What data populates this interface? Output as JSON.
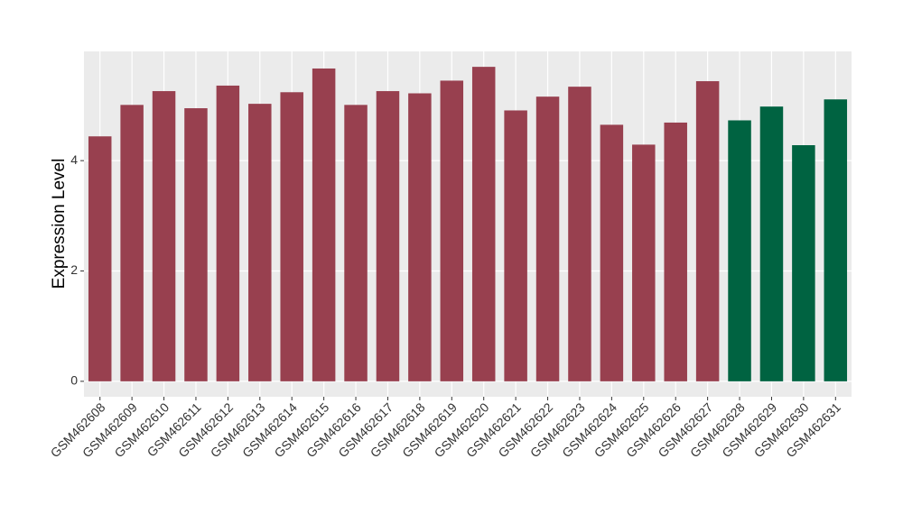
{
  "chart_data": {
    "type": "bar",
    "y_label": "Expression Level",
    "categories": [
      "GSM462608",
      "GSM462609",
      "GSM462610",
      "GSM462611",
      "GSM462612",
      "GSM462613",
      "GSM462614",
      "GSM462615",
      "GSM462616",
      "GSM462617",
      "GSM462618",
      "GSM462619",
      "GSM462620",
      "GSM462621",
      "GSM462622",
      "GSM462623",
      "GSM462624",
      "GSM462625",
      "GSM462626",
      "GSM462627",
      "GSM462628",
      "GSM462629",
      "GSM462630",
      "GSM462631"
    ],
    "values": [
      4.44,
      5.01,
      5.26,
      4.95,
      5.36,
      5.03,
      5.24,
      5.67,
      5.01,
      5.26,
      5.22,
      5.45,
      5.7,
      4.91,
      5.16,
      5.34,
      4.65,
      4.29,
      4.69,
      5.44,
      4.73,
      4.98,
      4.28,
      5.11
    ],
    "colors": [
      "#98404f",
      "#98404f",
      "#98404f",
      "#98404f",
      "#98404f",
      "#98404f",
      "#98404f",
      "#98404f",
      "#98404f",
      "#98404f",
      "#98404f",
      "#98404f",
      "#98404f",
      "#98404f",
      "#98404f",
      "#98404f",
      "#98404f",
      "#98404f",
      "#98404f",
      "#98404f",
      "#006341",
      "#006341",
      "#006341",
      "#006341"
    ],
    "ylim": [
      -0.28,
      5.98
    ],
    "yticks": [
      0,
      2,
      4
    ],
    "grid": true
  }
}
